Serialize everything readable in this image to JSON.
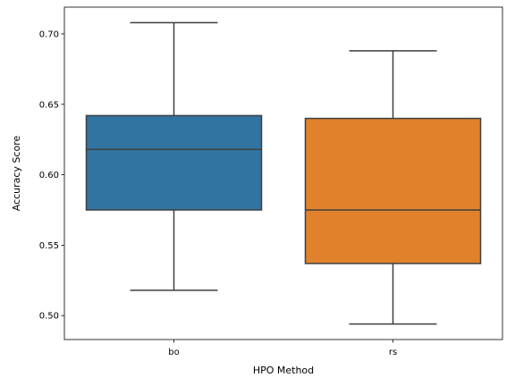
{
  "chart_data": {
    "type": "box",
    "title": "",
    "xlabel": "HPO Method",
    "ylabel": "Accuracy Score",
    "categories": [
      "bo",
      "rs"
    ],
    "boxes": [
      {
        "category": "bo",
        "whisker_low": 0.518,
        "q1": 0.575,
        "median": 0.618,
        "q3": 0.642,
        "whisker_high": 0.708,
        "color": "#3274a1"
      },
      {
        "category": "rs",
        "whisker_low": 0.494,
        "q1": 0.537,
        "median": 0.575,
        "q3": 0.64,
        "whisker_high": 0.688,
        "color": "#e1812c"
      }
    ],
    "ylim": [
      0.483,
      0.719
    ],
    "yticks": [
      0.5,
      0.55,
      0.6,
      0.65,
      0.7
    ],
    "ytick_labels": [
      "0.50",
      "0.55",
      "0.60",
      "0.65",
      "0.70"
    ],
    "grid": false,
    "legend": "none",
    "line_color": "#3f3f3f"
  }
}
